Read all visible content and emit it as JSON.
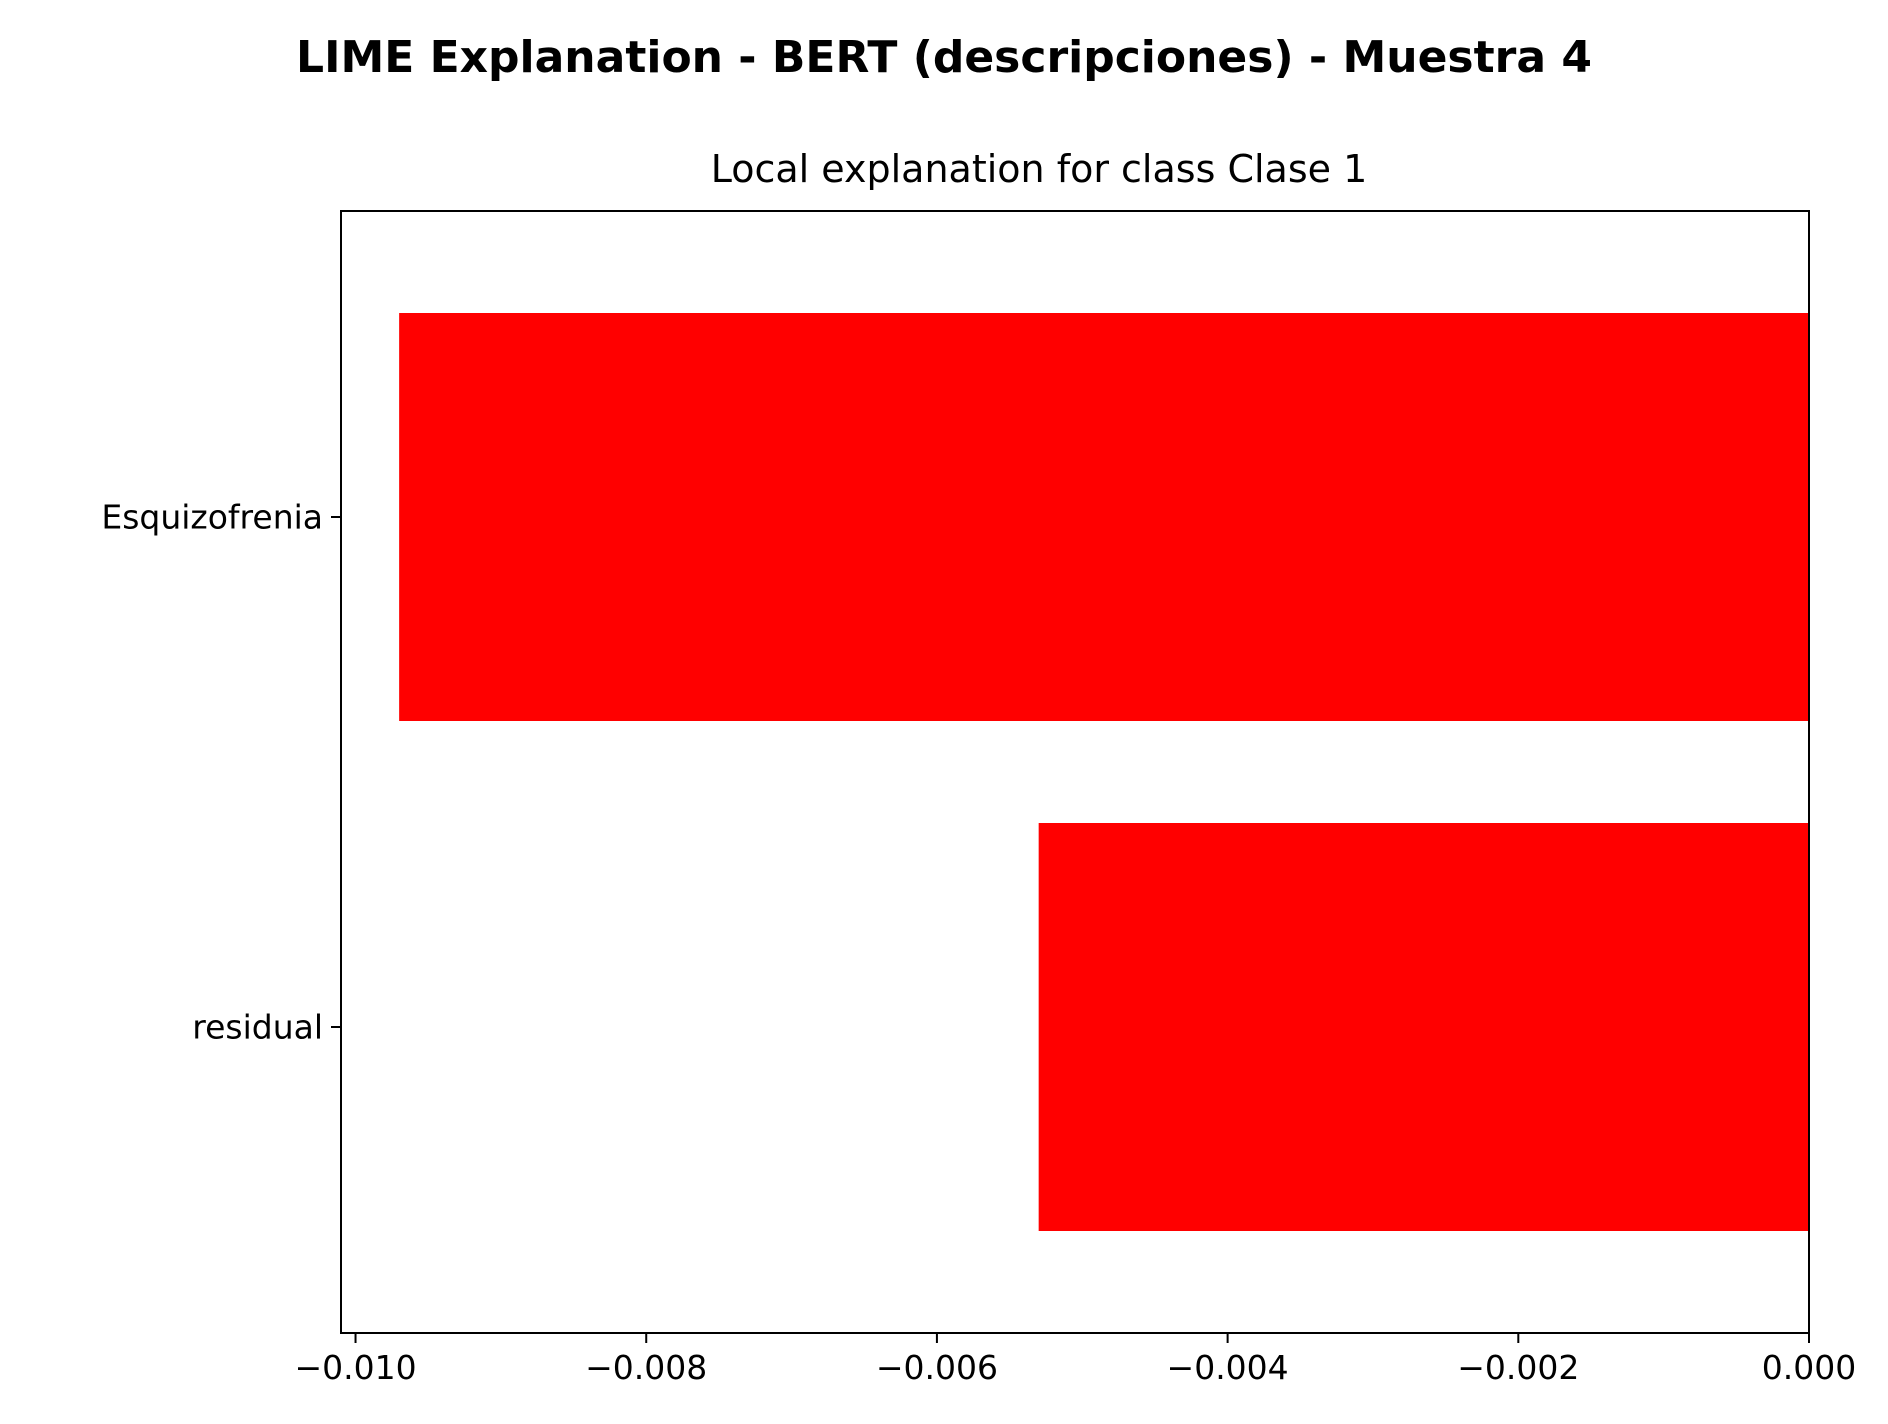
{
  "chart_data": {
    "type": "bar",
    "orientation": "horizontal",
    "suptitle": "LIME Explanation - BERT (descripciones) - Muestra 4",
    "title": "Local explanation for class Clase 1",
    "categories": [
      "Esquizofrenia",
      "residual"
    ],
    "values": [
      -0.0097,
      -0.0053
    ],
    "xlim": [
      -0.0101,
      0.0
    ],
    "xticks": [
      -0.01,
      -0.008,
      -0.006,
      -0.004,
      -0.002,
      0.0
    ],
    "xtick_labels": [
      "−0.010",
      "−0.008",
      "−0.006",
      "−0.004",
      "−0.002",
      "0.000"
    ],
    "grid": false,
    "bar_color": "#ff0000"
  }
}
